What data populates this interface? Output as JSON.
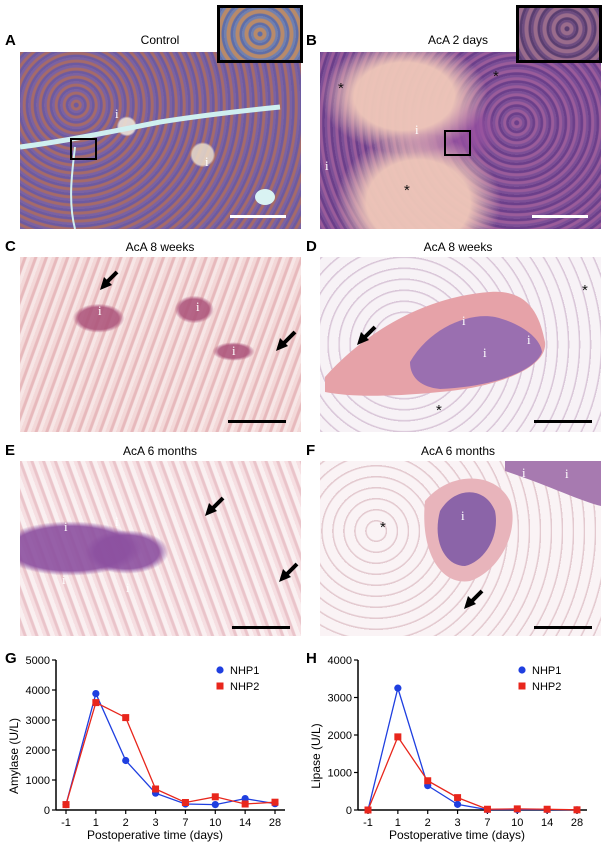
{
  "figure": {
    "panels": [
      {
        "id": "A",
        "title": "Control",
        "islet_marker": "i",
        "stars": 0,
        "arrows": 0
      },
      {
        "id": "B",
        "title": "AcA 2 days",
        "islet_marker": "i",
        "star_marker": "*",
        "stars": 3,
        "arrows": 0
      },
      {
        "id": "C",
        "title": "AcA 8 weeks",
        "islet_marker": "i",
        "stars": 0,
        "arrows": 2
      },
      {
        "id": "D",
        "title": "AcA 8 weeks",
        "islet_marker": "i",
        "star_marker": "*",
        "stars": 2,
        "arrows": 1
      },
      {
        "id": "E",
        "title": "AcA 6 months",
        "islet_marker": "i",
        "stars": 0,
        "arrows": 2
      },
      {
        "id": "F",
        "title": "AcA 6 months",
        "islet_marker": "i",
        "star_marker": "*",
        "stars": 1,
        "arrows": 1
      },
      {
        "id": "G"
      },
      {
        "id": "H"
      }
    ],
    "colors": {
      "he_purple": "#7a5fa8",
      "he_pink": "#e8b7b5",
      "nhp1": "#1f3fe0",
      "nhp2": "#e8261c",
      "scale_white": "#ffffff",
      "scale_black": "#000000"
    }
  },
  "chart_data": [
    {
      "panel": "G",
      "type": "line",
      "xlabel": "Postoperative time (days)",
      "ylabel": "Amylase (U/L)",
      "categories": [
        "-1",
        "1",
        "2",
        "3",
        "7",
        "10",
        "14",
        "28"
      ],
      "ylim": [
        0,
        5000
      ],
      "yticks": [
        "0",
        "1000",
        "2000",
        "3000",
        "4000",
        "5000"
      ],
      "legend_position": "top-right",
      "series": [
        {
          "name": "NHP1",
          "marker": "circle",
          "color": "#1f3fe0",
          "values": [
            180,
            3880,
            1650,
            560,
            200,
            180,
            380,
            210
          ]
        },
        {
          "name": "NHP2",
          "marker": "square",
          "color": "#e8261c",
          "values": [
            180,
            3580,
            3080,
            700,
            250,
            440,
            200,
            260
          ]
        }
      ]
    },
    {
      "panel": "H",
      "type": "line",
      "xlabel": "Postoperative time (days)",
      "ylabel": "Lipase (U/L)",
      "categories": [
        "-1",
        "1",
        "2",
        "3",
        "7",
        "10",
        "14",
        "28"
      ],
      "ylim": [
        0,
        4000
      ],
      "yticks": [
        "0",
        "1000",
        "2000",
        "3000",
        "4000"
      ],
      "legend_position": "top-right",
      "series": [
        {
          "name": "NHP1",
          "marker": "circle",
          "color": "#1f3fe0",
          "values": [
            0,
            3250,
            650,
            150,
            10,
            10,
            10,
            5
          ]
        },
        {
          "name": "NHP2",
          "marker": "square",
          "color": "#e8261c",
          "values": [
            0,
            1950,
            780,
            330,
            20,
            30,
            20,
            5
          ]
        }
      ]
    }
  ]
}
